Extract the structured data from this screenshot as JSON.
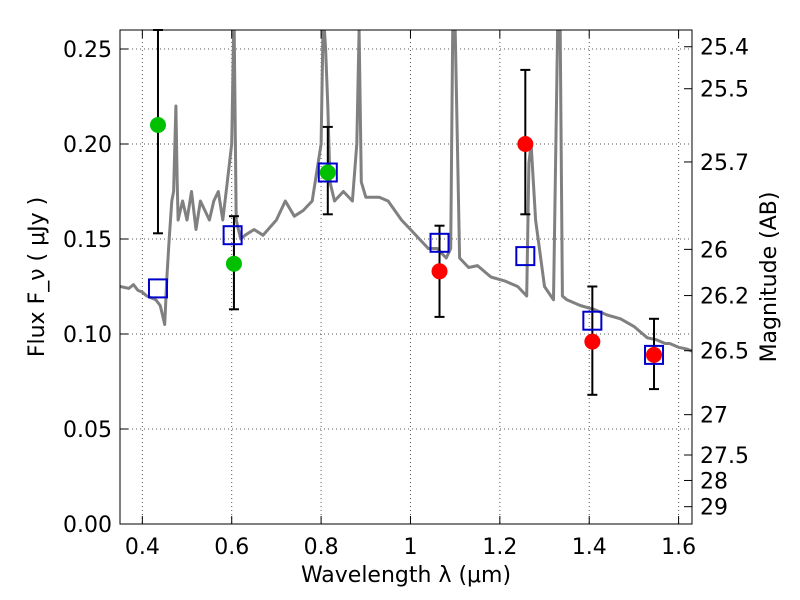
{
  "chart_data": {
    "type": "line",
    "xlabel": "Wavelength  λ (μm)",
    "ylabel": "Flux  F_ν  ( μJy )",
    "y2label": "Magnitude (AB)",
    "xlim": [
      0.35,
      1.63
    ],
    "ylim": [
      0.0,
      0.26
    ],
    "grid": true,
    "x_ticks": [
      {
        "value": 0.4,
        "label": "0.4"
      },
      {
        "value": 0.6,
        "label": "0.6"
      },
      {
        "value": 0.8,
        "label": "0.8"
      },
      {
        "value": 1.0,
        "label": "1"
      },
      {
        "value": 1.2,
        "label": "1.2"
      },
      {
        "value": 1.4,
        "label": "1.4"
      },
      {
        "value": 1.6,
        "label": "1.6"
      }
    ],
    "y_ticks": [
      {
        "value": 0.0,
        "label": "0.00"
      },
      {
        "value": 0.05,
        "label": "0.05"
      },
      {
        "value": 0.1,
        "label": "0.10"
      },
      {
        "value": 0.15,
        "label": "0.15"
      },
      {
        "value": 0.2,
        "label": "0.20"
      },
      {
        "value": 0.25,
        "label": "0.25"
      }
    ],
    "y2_ticks": [
      {
        "value": 25.4,
        "label": "25.4"
      },
      {
        "value": 25.5,
        "label": "25.5"
      },
      {
        "value": 25.7,
        "label": "25.7"
      },
      {
        "value": 26.0,
        "label": "26"
      },
      {
        "value": 26.2,
        "label": "26.2"
      },
      {
        "value": 26.5,
        "label": "26.5"
      },
      {
        "value": 27.0,
        "label": "27"
      },
      {
        "value": 27.5,
        "label": "27.5"
      },
      {
        "value": 28.0,
        "label": "28"
      },
      {
        "value": 29.0,
        "label": "29"
      }
    ],
    "colors": {
      "sed": "#808080",
      "green": "#00c000",
      "red": "#ff0000",
      "model_box": "#0000cc",
      "error": "#000000",
      "grid": "#555555"
    },
    "sed_curve": {
      "x": [
        0.35,
        0.37,
        0.38,
        0.39,
        0.4,
        0.41,
        0.42,
        0.43,
        0.44,
        0.445,
        0.45,
        0.455,
        0.46,
        0.463,
        0.466,
        0.47,
        0.475,
        0.478,
        0.48,
        0.485,
        0.49,
        0.5,
        0.51,
        0.52,
        0.53,
        0.55,
        0.56,
        0.57,
        0.58,
        0.59,
        0.6,
        0.605,
        0.61,
        0.62,
        0.63,
        0.65,
        0.67,
        0.7,
        0.72,
        0.74,
        0.76,
        0.78,
        0.8,
        0.805,
        0.81,
        0.815,
        0.82,
        0.83,
        0.85,
        0.87,
        0.88,
        0.885,
        0.89,
        0.9,
        0.93,
        0.95,
        0.98,
        1.0,
        1.02,
        1.04,
        1.06,
        1.08,
        1.09,
        1.095,
        1.1,
        1.11,
        1.13,
        1.15,
        1.18,
        1.21,
        1.24,
        1.26,
        1.265,
        1.27,
        1.28,
        1.3,
        1.32,
        1.33,
        1.335,
        1.34,
        1.35,
        1.38,
        1.41,
        1.44,
        1.47,
        1.5,
        1.53,
        1.55,
        1.57,
        1.58,
        1.59,
        1.6,
        1.62,
        1.63
      ],
      "y": [
        0.125,
        0.124,
        0.126,
        0.123,
        0.122,
        0.12,
        0.119,
        0.118,
        0.115,
        0.11,
        0.105,
        0.13,
        0.15,
        0.16,
        0.17,
        0.175,
        0.22,
        0.18,
        0.16,
        0.165,
        0.17,
        0.16,
        0.175,
        0.155,
        0.17,
        0.16,
        0.17,
        0.175,
        0.16,
        0.18,
        0.2,
        0.27,
        0.16,
        0.15,
        0.152,
        0.155,
        0.152,
        0.16,
        0.17,
        0.162,
        0.165,
        0.17,
        0.2,
        0.27,
        0.25,
        0.22,
        0.18,
        0.17,
        0.175,
        0.17,
        0.2,
        0.26,
        0.18,
        0.172,
        0.172,
        0.17,
        0.16,
        0.155,
        0.15,
        0.145,
        0.145,
        0.14,
        0.145,
        0.27,
        0.26,
        0.14,
        0.135,
        0.136,
        0.13,
        0.128,
        0.125,
        0.12,
        0.19,
        0.2,
        0.16,
        0.125,
        0.118,
        0.27,
        0.26,
        0.12,
        0.118,
        0.115,
        0.113,
        0.11,
        0.108,
        0.104,
        0.098,
        0.097,
        0.095,
        0.095,
        0.094,
        0.093,
        0.092,
        0.091
      ]
    },
    "green_points": {
      "x": [
        0.435,
        0.605,
        0.815
      ],
      "y": [
        0.21,
        0.137,
        0.185
      ],
      "yerr_low": [
        0.153,
        0.113,
        0.163
      ],
      "yerr_high": [
        0.26,
        0.162,
        0.209
      ]
    },
    "red_points": {
      "x": [
        1.065,
        1.257,
        1.407,
        1.545
      ],
      "y": [
        0.133,
        0.2,
        0.096,
        0.089
      ],
      "yerr_low": [
        0.109,
        0.163,
        0.068,
        0.071
      ],
      "yerr_high": [
        0.157,
        0.239,
        0.125,
        0.108
      ]
    },
    "model_boxes": {
      "x": [
        0.435,
        0.602,
        0.815,
        1.065,
        1.257,
        1.407,
        1.545
      ],
      "y": [
        0.124,
        0.152,
        0.185,
        0.148,
        0.141,
        0.107,
        0.089
      ]
    }
  }
}
